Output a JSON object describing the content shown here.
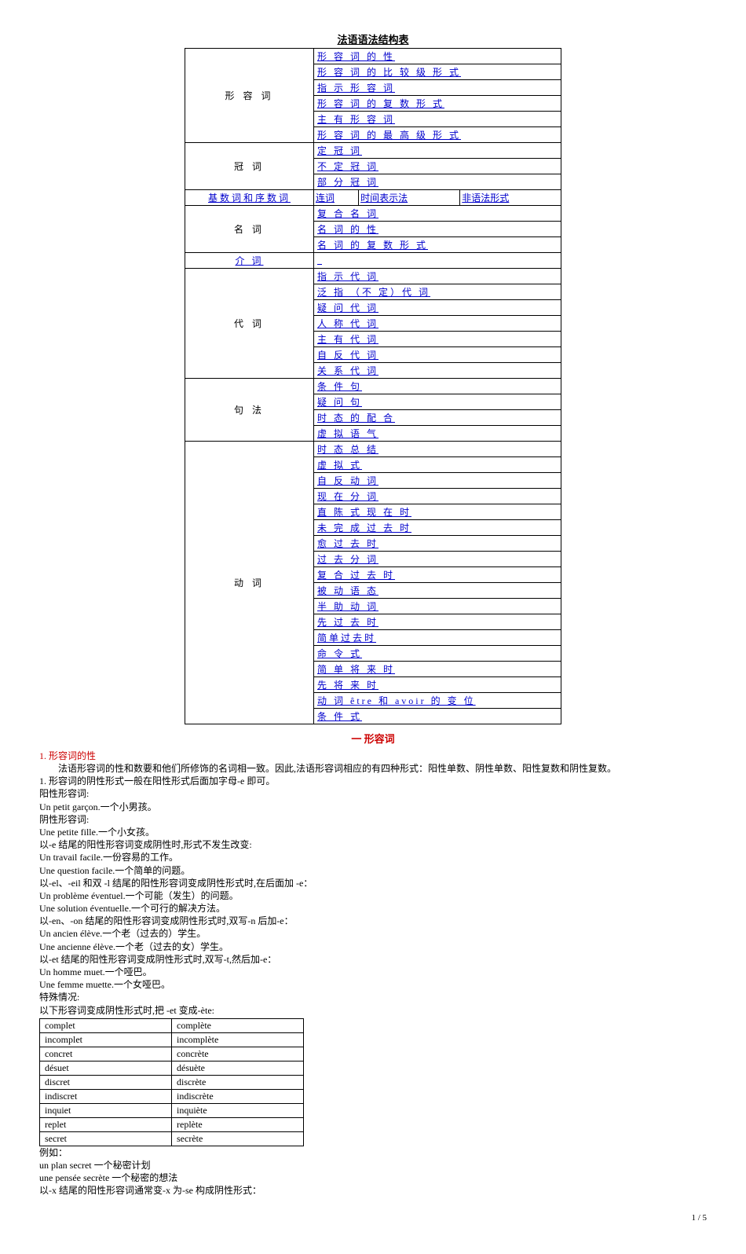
{
  "title": "法语语法结构表",
  "toc": [
    {
      "cat": "形 容 词",
      "items": [
        "形 容 词 的 性",
        "形 容 词 的 比 较 级 形 式",
        "指 示 形 容 词",
        "形 容 词 的 复 数 形 式",
        "主 有 形 容 词",
        "形 容 词 的 最 高 级 形 式"
      ]
    },
    {
      "cat": "冠 词",
      "items": [
        "定 冠 词",
        "不 定 冠 词",
        "部 分 冠 词"
      ]
    },
    {
      "cat": "基数词和序数词",
      "triple": [
        "连词",
        "时间表示法",
        "非语法形式"
      ]
    },
    {
      "cat": "名 词",
      "items": [
        "复 合 名 词",
        "名 词 的 性",
        "名 词 的 复 数 形 式"
      ]
    },
    {
      "cat": "介 词",
      "items": [
        ""
      ]
    },
    {
      "cat": "代 词",
      "items": [
        "指 示 代 词",
        "泛 指 （不 定）代 词",
        "疑 问 代 词",
        "人 称 代 词",
        "主 有 代 词",
        "自 反 代 词",
        "关 系 代 词"
      ]
    },
    {
      "cat": "句 法",
      "items": [
        "条 件 句",
        "疑 问 句",
        "时 态 的 配 合",
        "虚 拟 语 气"
      ]
    },
    {
      "cat": "动 词",
      "items": [
        "时 态 总 结",
        "虚 拟 式",
        "自 反 动 词",
        "现 在 分 词",
        "直 陈 式 现 在 时",
        "未 完 成 过 去 时",
        "愈 过 去 时",
        "过 去 分 词",
        "复 合 过 去 时",
        "被 动 语 态",
        "半 助 动 词",
        "先 过 去 时",
        "简单过去时",
        "命 令 式",
        "简 单 将 来 时",
        "先 将 来 时",
        "动 词 être 和 avoir 的 变 位",
        "条 件 式"
      ]
    }
  ],
  "section1_title": "一 形容词",
  "sub1": "1. 形容词的性",
  "para_lines": [
    "　　法语形容词的性和数要和他们所修饰的名词相一致。因此,法语形容词相应的有四种形式：阳性单数、阴性单数、阳性复数和阴性复数。",
    "1. 形容词的阴性形式一般在阳性形式后面加字母-e 即可。",
    "阳性形容词:",
    "Un petit garçon.一个小男孩。",
    "阴性形容词:",
    "Une petite fille.一个小女孩。",
    "以-e 结尾的阳性形容词变成阴性时,形式不发生改变:",
    "Un travail facile.一份容易的工作。",
    "Une question facile.一个简单的问题。",
    "以-el、-eil 和双 -l 结尾的阳性形容词变成阴性形式时,在后面加 -e：",
    "Un problème éventuel.一个可能（发生）的问题。",
    "Une solution éventuelle.一个可行的解决方法。",
    "以-en、-on 结尾的阳性形容词变成阴性形式时,双写-n 后加-e：",
    "Un ancien élève.一个老（过去的）学生。",
    "Une ancienne élève.一个老（过去的女）学生。",
    "以-et 结尾的阳性形容词变成阴性形式时,双写-t,然后加-e：",
    "Un homme muet.一个哑巴。",
    "Une femme muette.一个女哑巴。",
    "特殊情况:",
    "以下形容词变成阴性形式时,把 -et 变成-ète:"
  ],
  "et_table": [
    [
      "complet",
      "complète"
    ],
    [
      "incomplet",
      "incomplète"
    ],
    [
      "concret",
      "concrète"
    ],
    [
      "désuet",
      "désuète"
    ],
    [
      "discret",
      "discrète"
    ],
    [
      "indiscret",
      "indiscrète"
    ],
    [
      "inquiet",
      "inquiète"
    ],
    [
      "replet",
      "replète"
    ],
    [
      "secret",
      "secrète"
    ]
  ],
  "after_table": [
    "例如：",
    "un plan secret 一个秘密计划",
    "une pensée secrète 一个秘密的想法",
    "以-x 结尾的阳性形容词通常变-x 为-se 构成阴性形式："
  ],
  "page_num": "1 / 5"
}
